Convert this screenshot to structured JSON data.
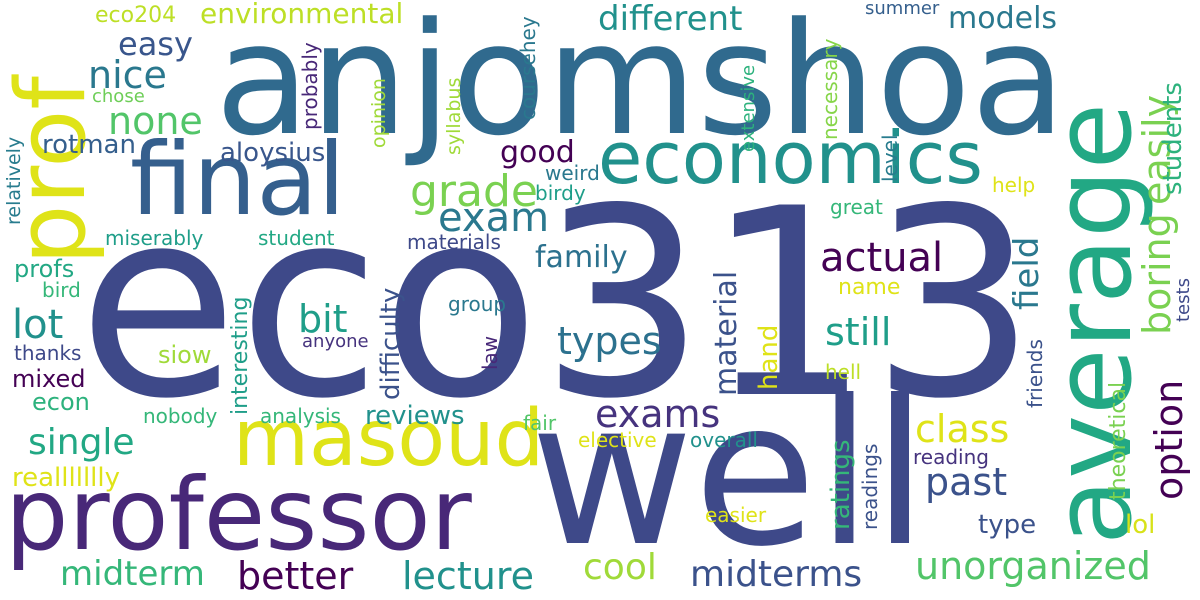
{
  "cloud": {
    "words": [
      {
        "text": "eco313",
        "color": "#3e4989"
      },
      {
        "text": "anjomshoa",
        "color": "#306a8e"
      },
      {
        "text": "well",
        "color": "#3e4989"
      },
      {
        "text": "average",
        "color": "#22a884"
      },
      {
        "text": "professor",
        "color": "#482878"
      },
      {
        "text": "prof",
        "color": "#dfe318"
      },
      {
        "text": "final",
        "color": "#355f8d"
      },
      {
        "text": "masoud",
        "color": "#dfe318"
      },
      {
        "text": "economics",
        "color": "#21918c"
      },
      {
        "text": "grade",
        "color": "#7ad151"
      },
      {
        "text": "exam",
        "color": "#2a788e"
      },
      {
        "text": "actual",
        "color": "#440154"
      },
      {
        "text": "still",
        "color": "#1f9e89"
      },
      {
        "text": "boring",
        "color": "#7ad151"
      },
      {
        "text": "easily",
        "color": "#7ad151"
      },
      {
        "text": "option",
        "color": "#440154"
      },
      {
        "text": "field",
        "color": "#2a788e"
      },
      {
        "text": "students",
        "color": "#2db27d"
      },
      {
        "text": "models",
        "color": "#2a788e"
      },
      {
        "text": "different",
        "color": "#21918c"
      },
      {
        "text": "environmental",
        "color": "#bddf26"
      },
      {
        "text": "eco204",
        "color": "#bddf26"
      },
      {
        "text": "easy",
        "color": "#39568c"
      },
      {
        "text": "nice",
        "color": "#2a788e"
      },
      {
        "text": "none",
        "color": "#52c569"
      },
      {
        "text": "chose",
        "color": "#6ece58"
      },
      {
        "text": "rotman",
        "color": "#355f8d"
      },
      {
        "text": "relatively",
        "color": "#287c8e"
      },
      {
        "text": "aloysius",
        "color": "#39568c"
      },
      {
        "text": "good",
        "color": "#440154"
      },
      {
        "text": "weird",
        "color": "#2a788e"
      },
      {
        "text": "birdy",
        "color": "#1f9e89"
      },
      {
        "text": "coursehey",
        "color": "#2a788e"
      },
      {
        "text": "syllabus",
        "color": "#a0da39"
      },
      {
        "text": "opinion",
        "color": "#a0da39"
      },
      {
        "text": "probably",
        "color": "#482878"
      },
      {
        "text": "extensive",
        "color": "#2db27d"
      },
      {
        "text": "necessary",
        "color": "#86d549"
      },
      {
        "text": "summer",
        "color": "#355f8d"
      },
      {
        "text": "level",
        "color": "#287c8e"
      },
      {
        "text": "help",
        "color": "#dfe318"
      },
      {
        "text": "great",
        "color": "#35b779"
      },
      {
        "text": "miserably",
        "color": "#1f9e89"
      },
      {
        "text": "student",
        "color": "#22a884"
      },
      {
        "text": "materials",
        "color": "#3e4989"
      },
      {
        "text": "family",
        "color": "#2c718e"
      },
      {
        "text": "material",
        "color": "#3b528b"
      },
      {
        "text": "profs",
        "color": "#22a884"
      },
      {
        "text": "bird",
        "color": "#35b779"
      },
      {
        "text": "lot",
        "color": "#21918c"
      },
      {
        "text": "bit",
        "color": "#1f9e89"
      },
      {
        "text": "difficulty",
        "color": "#3b528b"
      },
      {
        "text": "interesting",
        "color": "#1f9e89"
      },
      {
        "text": "group",
        "color": "#2a788e"
      },
      {
        "text": "law",
        "color": "#482878"
      },
      {
        "text": "anyone",
        "color": "#46337e"
      },
      {
        "text": "types",
        "color": "#2c718e"
      },
      {
        "text": "hand",
        "color": "#dfe318"
      },
      {
        "text": "name",
        "color": "#dfe318"
      },
      {
        "text": "hell",
        "color": "#bddf26"
      },
      {
        "text": "tests",
        "color": "#3e4989"
      },
      {
        "text": "friends",
        "color": "#3b528b"
      },
      {
        "text": "theoretical",
        "color": "#7ad151"
      },
      {
        "text": "thanks",
        "color": "#3e4989"
      },
      {
        "text": "siow",
        "color": "#a0da39"
      },
      {
        "text": "mixed",
        "color": "#440154"
      },
      {
        "text": "econ",
        "color": "#2db27d"
      },
      {
        "text": "nobody",
        "color": "#35b779"
      },
      {
        "text": "analysis",
        "color": "#35b779"
      },
      {
        "text": "reviews",
        "color": "#21918c"
      },
      {
        "text": "exams",
        "color": "#46337e"
      },
      {
        "text": "fair",
        "color": "#52c569"
      },
      {
        "text": "elective",
        "color": "#dfe318"
      },
      {
        "text": "overall",
        "color": "#21918c"
      },
      {
        "text": "ratings",
        "color": "#35b779"
      },
      {
        "text": "readings",
        "color": "#3b528b"
      },
      {
        "text": "class",
        "color": "#dfe318"
      },
      {
        "text": "past",
        "color": "#3b528b"
      },
      {
        "text": "reading",
        "color": "#46337e"
      },
      {
        "text": "single",
        "color": "#22a884"
      },
      {
        "text": "reallllllly",
        "color": "#dfe318"
      },
      {
        "text": "easier",
        "color": "#dfe318"
      },
      {
        "text": "type",
        "color": "#3b528b"
      },
      {
        "text": "lol",
        "color": "#d8e219"
      },
      {
        "text": "midterm",
        "color": "#35b779"
      },
      {
        "text": "better",
        "color": "#440154"
      },
      {
        "text": "lecture",
        "color": "#21918c"
      },
      {
        "text": "cool",
        "color": "#a0da39"
      },
      {
        "text": "midterms",
        "color": "#3b528b"
      },
      {
        "text": "unorganized",
        "color": "#52c569"
      }
    ]
  }
}
